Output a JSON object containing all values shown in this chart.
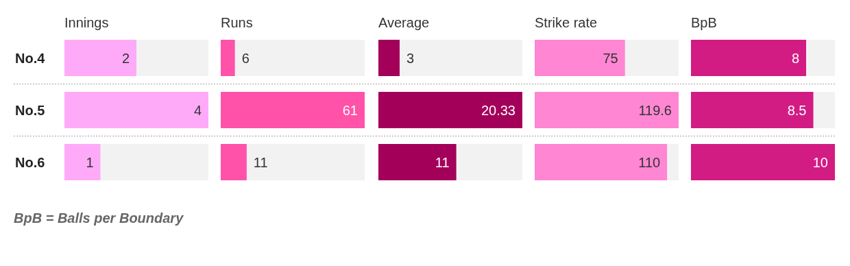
{
  "chart_data": [
    {
      "type": "bar",
      "orientation": "horizontal",
      "title": "Innings",
      "categories": [
        "No.4",
        "No.5",
        "No.6"
      ],
      "values": [
        2,
        4,
        1
      ],
      "color": "#ffaaf9",
      "xlim": [
        0,
        4
      ],
      "data_labels": true,
      "tick_labels": "y",
      "annotations": [
        "BpB = Balls per Boundary"
      ]
    },
    {
      "type": "bar",
      "orientation": "horizontal",
      "title": "Runs",
      "categories": [
        null,
        null,
        null
      ],
      "values": [
        6,
        61,
        11
      ],
      "color": "#ff52a8",
      "xlim": [
        0,
        61
      ],
      "data_labels": true
    },
    {
      "type": "bar",
      "orientation": "horizontal",
      "title": "Average",
      "categories": [
        null,
        null,
        null
      ],
      "values": [
        3,
        20.33,
        11
      ],
      "color": "#a3005a",
      "xlim": [
        0,
        20.33
      ],
      "data_labels": true
    },
    {
      "type": "bar",
      "orientation": "horizontal",
      "title": "Strike rate",
      "categories": [
        null,
        null,
        null
      ],
      "values": [
        75,
        119.6,
        110
      ],
      "color": "#ff86d2",
      "xlim": [
        0,
        119.6
      ],
      "data_labels": true
    },
    {
      "type": "bar",
      "orientation": "horizontal",
      "title": "BpB",
      "categories": [
        null,
        null,
        null
      ],
      "values": [
        8,
        8.5,
        10
      ],
      "color": "#d31b84",
      "xlim": [
        0,
        10
      ],
      "data_labels": true
    }
  ]
}
